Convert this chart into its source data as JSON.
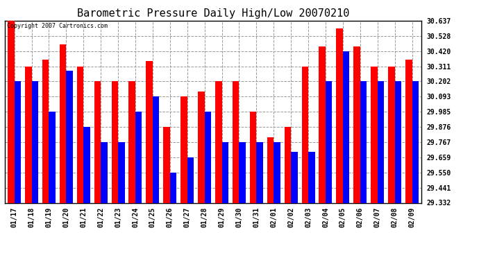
{
  "title": "Barometric Pressure Daily High/Low 20070210",
  "copyright": "Copyright 2007 Cartronics.com",
  "dates": [
    "01/17",
    "01/18",
    "01/19",
    "01/20",
    "01/21",
    "01/22",
    "01/23",
    "01/24",
    "01/25",
    "01/26",
    "01/27",
    "01/28",
    "01/29",
    "01/30",
    "01/31",
    "02/01",
    "02/02",
    "02/03",
    "02/04",
    "02/05",
    "02/06",
    "02/07",
    "02/08",
    "02/09"
  ],
  "highs": [
    30.637,
    30.311,
    30.36,
    30.47,
    30.311,
    30.202,
    30.202,
    30.202,
    30.35,
    29.876,
    30.093,
    30.13,
    30.202,
    30.202,
    29.985,
    29.8,
    29.876,
    30.311,
    30.453,
    30.58,
    30.453,
    30.311,
    30.311,
    30.36
  ],
  "lows": [
    30.202,
    30.202,
    29.985,
    30.28,
    29.876,
    29.767,
    29.767,
    29.985,
    30.093,
    29.55,
    29.659,
    29.985,
    29.767,
    29.767,
    29.767,
    29.767,
    29.695,
    29.695,
    30.202,
    30.42,
    30.202,
    30.202,
    30.202,
    30.202
  ],
  "high_color": "#ff0000",
  "low_color": "#0000ff",
  "background_color": "#ffffff",
  "plot_bg_color": "#ffffff",
  "grid_color": "#aaaaaa",
  "title_fontsize": 11,
  "ytick_labels": [
    30.637,
    30.528,
    30.42,
    30.311,
    30.202,
    30.093,
    29.985,
    29.876,
    29.767,
    29.659,
    29.55,
    29.441,
    29.332
  ],
  "ymin": 29.332,
  "ymax": 30.637,
  "bar_width": 0.38
}
